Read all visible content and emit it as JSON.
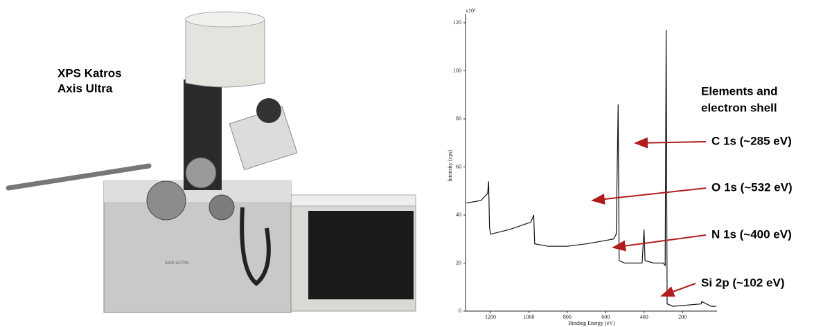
{
  "photo": {
    "label_lines": [
      "XPS Katros",
      "Axis Ultra"
    ],
    "brand_label": "AXIS ULTRA"
  },
  "chart_data": {
    "type": "line",
    "x_label": "Binding Energy (eV)",
    "y_label": "Intensity (cps)",
    "y_multiplier": "x10²",
    "x": [
      1325,
      1250,
      1215,
      1210,
      1205,
      1200,
      1100,
      990,
      975,
      970,
      900,
      800,
      700,
      560,
      545,
      535,
      530,
      500,
      410,
      400,
      395,
      350,
      300,
      290,
      285,
      280,
      250,
      102,
      100,
      50,
      25
    ],
    "values": [
      45,
      46,
      49,
      54,
      35,
      32,
      34,
      37,
      40,
      28,
      27,
      27,
      28,
      30,
      32,
      86,
      21,
      20,
      20,
      34,
      21,
      20,
      20,
      19,
      117,
      3,
      2,
      3,
      4,
      2,
      2
    ],
    "color": "#111111",
    "xlim": [
      1330,
      20
    ],
    "ylim": [
      0,
      120
    ],
    "xticks": [
      1200,
      1000,
      800,
      600,
      400,
      200
    ],
    "yticks": [
      0,
      20,
      40,
      60,
      80,
      100,
      120
    ],
    "legend_title_lines": [
      "Elements and",
      "electron shell"
    ],
    "annotations": [
      "C 1s (~285 eV)",
      "O 1s (~532 eV)",
      "N 1s (~400 eV)",
      "Si 2p (~102 eV)"
    ],
    "annotation_color": "#b01c1c"
  }
}
